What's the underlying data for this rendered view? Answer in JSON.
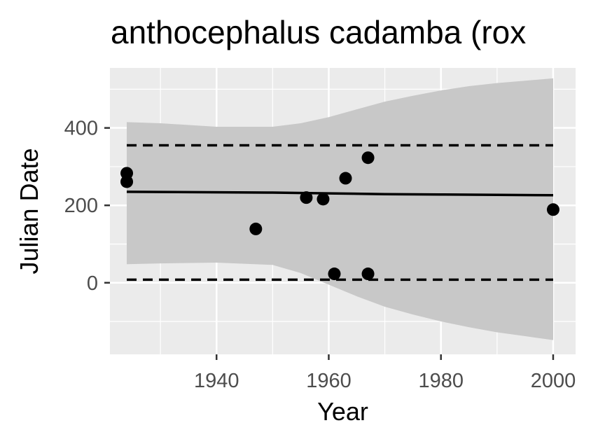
{
  "chart_data": {
    "type": "scatter",
    "title": "anthocephalus cadamba (rox",
    "xlabel": "Year",
    "ylabel": "Julian Date",
    "xlim": [
      1921,
      2004
    ],
    "ylim": [
      -185,
      555
    ],
    "x_ticks": [
      1940,
      1960,
      1980,
      2000
    ],
    "x_tick_labels": [
      "1940",
      "1960",
      "1980",
      "2000"
    ],
    "x_minor_ticks": [
      1930,
      1950,
      1970,
      1990
    ],
    "y_ticks": [
      0,
      200,
      400
    ],
    "y_tick_labels": [
      "0",
      "200",
      "400"
    ],
    "y_minor_ticks": [
      -100,
      100,
      300,
      500
    ],
    "grid": true,
    "legend": "none",
    "colors": {
      "panel_background": "#ebebeb",
      "grid": "#ffffff",
      "ribbon": "#c8c8c8",
      "points": "#000000",
      "lines": "#000000",
      "tick_text": "#4d4d4d"
    },
    "points": [
      {
        "x": 1924,
        "y": 283
      },
      {
        "x": 1924,
        "y": 261
      },
      {
        "x": 1947,
        "y": 139
      },
      {
        "x": 1956,
        "y": 220
      },
      {
        "x": 1959,
        "y": 216
      },
      {
        "x": 1961,
        "y": 23
      },
      {
        "x": 1963,
        "y": 270
      },
      {
        "x": 1967,
        "y": 323
      },
      {
        "x": 1967,
        "y": 23
      },
      {
        "x": 2000,
        "y": 189
      }
    ],
    "fit_line": {
      "x": [
        1924,
        1950,
        1960,
        1970,
        1980,
        1990,
        2000
      ],
      "y": [
        235,
        233,
        231,
        229,
        228,
        227,
        226
      ]
    },
    "confidence_band": {
      "x": [
        1924,
        1930,
        1940,
        1950,
        1955,
        1960,
        1965,
        1970,
        1975,
        1980,
        1985,
        1990,
        1995,
        2000
      ],
      "lower": [
        48,
        50,
        52,
        46,
        25,
        -5,
        -35,
        -62,
        -82,
        -100,
        -115,
        -128,
        -138,
        -148
      ],
      "upper": [
        415,
        412,
        403,
        403,
        412,
        428,
        448,
        468,
        483,
        497,
        508,
        516,
        522,
        528
      ]
    },
    "prediction_interval": {
      "x": [
        1924,
        2000
      ],
      "lower": 8,
      "upper": 355
    }
  }
}
